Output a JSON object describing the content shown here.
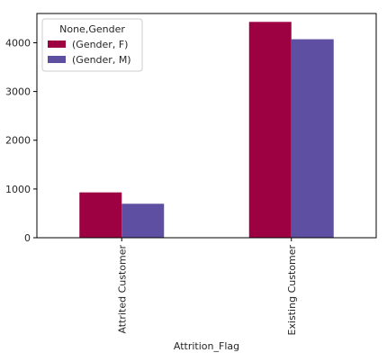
{
  "chart_data": {
    "type": "bar",
    "categories": [
      "Attrited Customer",
      "Existing Customer"
    ],
    "series": [
      {
        "name": "(Gender, F)",
        "values": [
          930,
          4428
        ],
        "color": "#9e0142"
      },
      {
        "name": "(Gender, M)",
        "values": [
          697,
          4072
        ],
        "color": "#5e4fa2"
      }
    ],
    "xlabel": "Attrition_Flag",
    "ylabel": "",
    "ylim": [
      0,
      4600
    ],
    "yticks": [
      0,
      1000,
      2000,
      3000,
      4000
    ],
    "legend": {
      "title": "None,Gender",
      "placement": "top-left"
    },
    "grid": false
  }
}
